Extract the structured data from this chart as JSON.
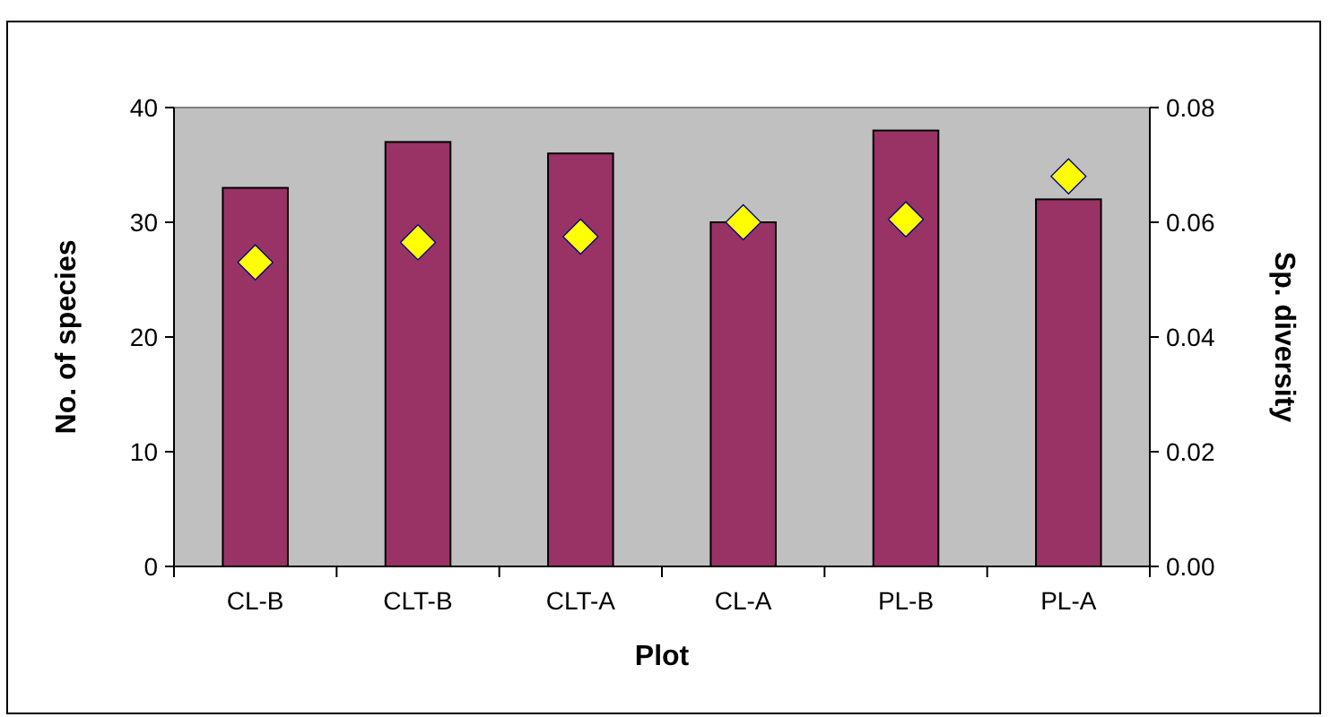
{
  "chart_data": {
    "type": "bar",
    "xlabel": "Plot",
    "ylabel": "No. of species",
    "y2label": "Sp. diversity",
    "categories": [
      "CL-B",
      "CLT-B",
      "CLT-A",
      "CL-A",
      "PL-B",
      "PL-A"
    ],
    "series": [
      {
        "color": "#993366",
        "values": [
          33,
          37,
          36,
          30,
          38,
          32
        ]
      },
      {
        "type": "scatter",
        "axis": "y2",
        "color": "#ffff00",
        "marker": "diamond",
        "values": [
          0.053,
          0.0565,
          0.0575,
          0.06,
          0.0605,
          0.068
        ]
      }
    ],
    "ylim": [
      0,
      40
    ],
    "yticks": [
      0,
      10,
      20,
      30,
      40
    ],
    "y2lim": [
      0,
      0.08
    ],
    "y2ticks": [
      {
        "value": 0,
        "label": "0.00"
      },
      {
        "value": 0.02,
        "label": "0.02"
      },
      {
        "value": 0.04,
        "label": "0.04"
      },
      {
        "value": 0.06,
        "label": "0.06"
      },
      {
        "value": 0.08,
        "label": "0.08"
      }
    ],
    "grid": false
  }
}
